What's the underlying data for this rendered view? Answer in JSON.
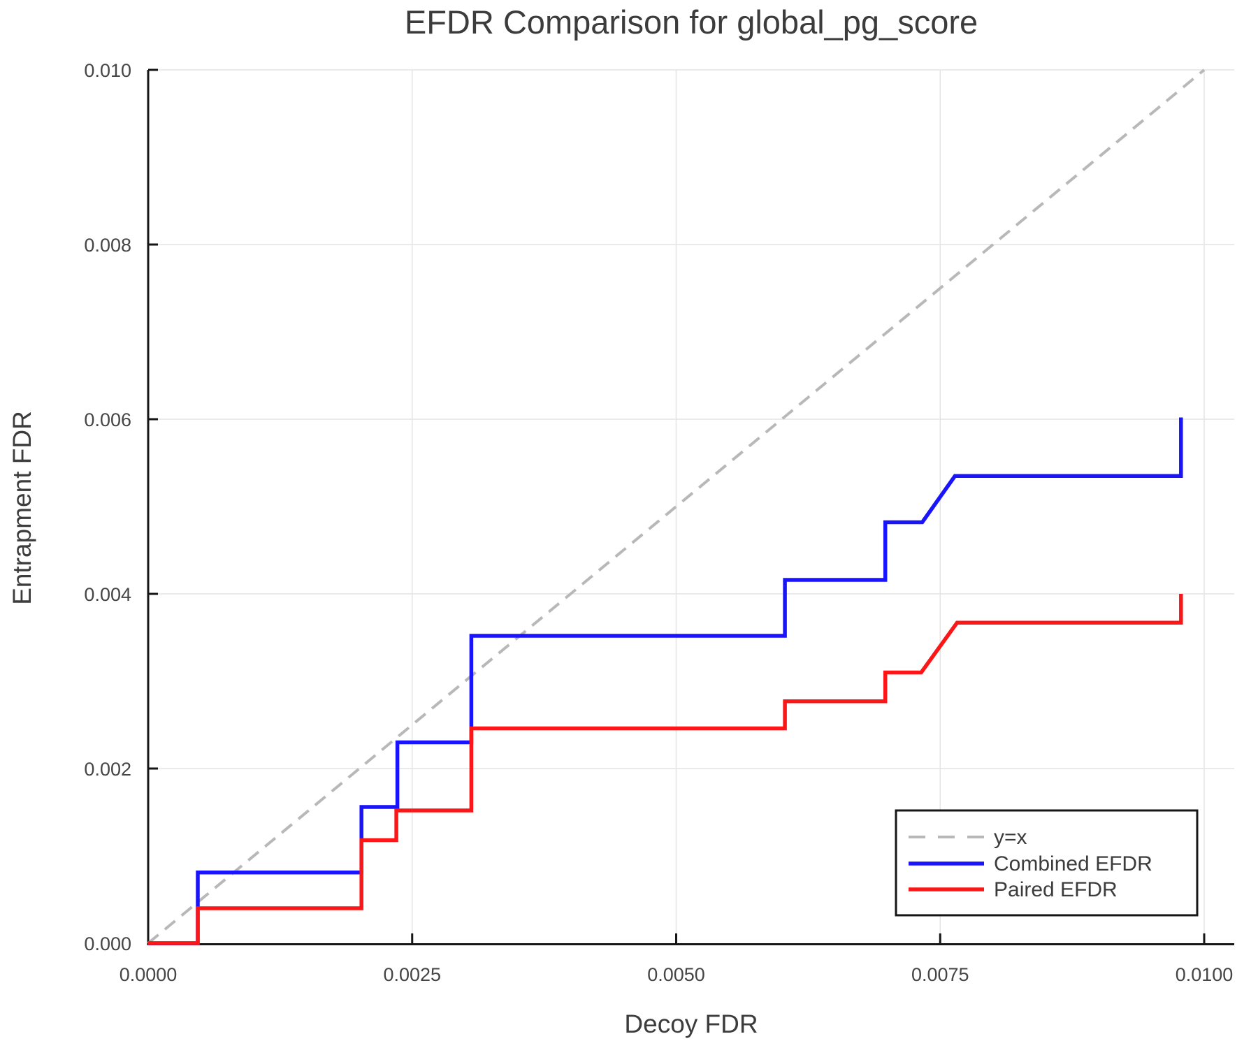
{
  "chart_data": {
    "type": "line",
    "title": "EFDR Comparison for global_pg_score",
    "xlabel": "Decoy FDR",
    "ylabel": "Entrapment FDR",
    "xlim": [
      0.0,
      0.01
    ],
    "ylim": [
      0.0,
      0.01
    ],
    "grid": true,
    "x_ticks": {
      "values": [
        0.0,
        0.0025,
        0.005,
        0.0075,
        0.01
      ],
      "labels": [
        "0.0000",
        "0.0025",
        "0.0050",
        "0.0075",
        "0.0100"
      ]
    },
    "y_ticks": {
      "values": [
        0.0,
        0.002,
        0.004,
        0.006,
        0.008,
        0.01
      ],
      "labels": [
        "0.000",
        "0.002",
        "0.004",
        "0.006",
        "0.008",
        "0.010"
      ]
    },
    "series": [
      {
        "name": "y=x",
        "style": "dashed",
        "color": "#b8b8b8",
        "points": [
          [
            0.0,
            0.0
          ],
          [
            0.01,
            0.01
          ]
        ]
      },
      {
        "name": "Combined EFDR",
        "style": "solid",
        "color": "#1a14fb",
        "points": [
          [
            0.0,
            0.0
          ],
          [
            0.00047,
            0.0
          ],
          [
            0.00047,
            0.00081
          ],
          [
            0.00202,
            0.00081
          ],
          [
            0.00202,
            0.00156
          ],
          [
            0.00236,
            0.00156
          ],
          [
            0.00236,
            0.0023
          ],
          [
            0.00306,
            0.0023
          ],
          [
            0.00306,
            0.00352
          ],
          [
            0.00603,
            0.00352
          ],
          [
            0.00603,
            0.00416
          ],
          [
            0.00698,
            0.00416
          ],
          [
            0.00698,
            0.00482
          ],
          [
            0.00733,
            0.00482
          ],
          [
            0.00764,
            0.00535
          ],
          [
            0.00978,
            0.00535
          ],
          [
            0.00978,
            0.00602
          ]
        ]
      },
      {
        "name": "Paired EFDR",
        "style": "solid",
        "color": "#fb1717",
        "points": [
          [
            0.0,
            0.0
          ],
          [
            0.00047,
            0.0
          ],
          [
            0.00047,
            0.0004
          ],
          [
            0.00202,
            0.0004
          ],
          [
            0.00202,
            0.00118
          ],
          [
            0.00235,
            0.00118
          ],
          [
            0.00235,
            0.00152
          ],
          [
            0.00306,
            0.00152
          ],
          [
            0.00306,
            0.00246
          ],
          [
            0.00603,
            0.00246
          ],
          [
            0.00603,
            0.00277
          ],
          [
            0.00698,
            0.00277
          ],
          [
            0.00698,
            0.0031
          ],
          [
            0.00732,
            0.0031
          ],
          [
            0.00766,
            0.00367
          ],
          [
            0.00978,
            0.00367
          ],
          [
            0.00978,
            0.004
          ]
        ]
      }
    ],
    "legend": {
      "position": "bottom-right",
      "items": [
        {
          "label": "y=x"
        },
        {
          "label": "Combined EFDR"
        },
        {
          "label": "Paired EFDR"
        }
      ]
    },
    "colors": {
      "grid": "#e4e4e4",
      "spine": "#161616",
      "text": "#3c3c3c"
    }
  }
}
